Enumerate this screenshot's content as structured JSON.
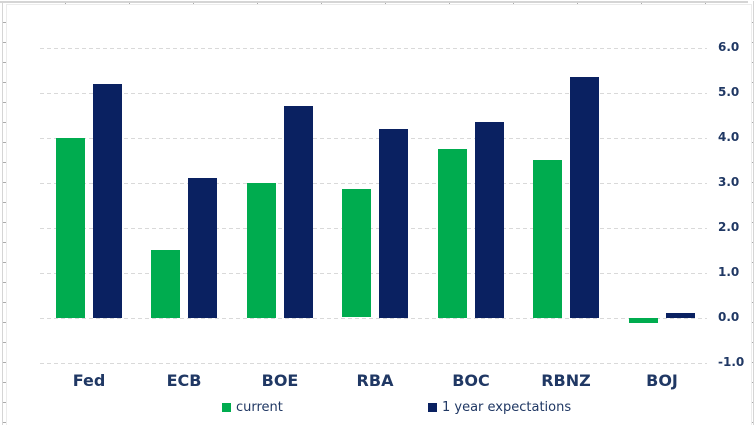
{
  "chart_data": {
    "type": "bar",
    "title": "",
    "xlabel": "",
    "ylabel": "",
    "categories": [
      "Fed",
      "ECB",
      "BOE",
      "RBA",
      "BOC",
      "RBNZ",
      "BOJ"
    ],
    "series": [
      {
        "name": "current",
        "color": "#00AC4F",
        "values": [
          4.0,
          1.5,
          3.0,
          2.85,
          3.75,
          3.5,
          -0.1
        ]
      },
      {
        "name": "1 year expectations",
        "color": "#0A2161",
        "values": [
          5.2,
          3.1,
          4.7,
          4.2,
          4.35,
          5.35,
          0.1
        ]
      }
    ],
    "ylim": [
      -1.0,
      6.0
    ],
    "ytick_step": 1.0,
    "ytick_labels": [
      "6.0",
      "5.0",
      "4.0",
      "3.0",
      "2.0",
      "1.0",
      "0.0",
      "-1.0"
    ],
    "yaxis_side": "right",
    "grid": "horizontal-dashed",
    "legend_position": "bottom",
    "colors": {
      "text": "#203864",
      "gridline": "#d9d9d9",
      "background": "#ffffff",
      "sheet_edge": "#d5d5d5"
    }
  }
}
